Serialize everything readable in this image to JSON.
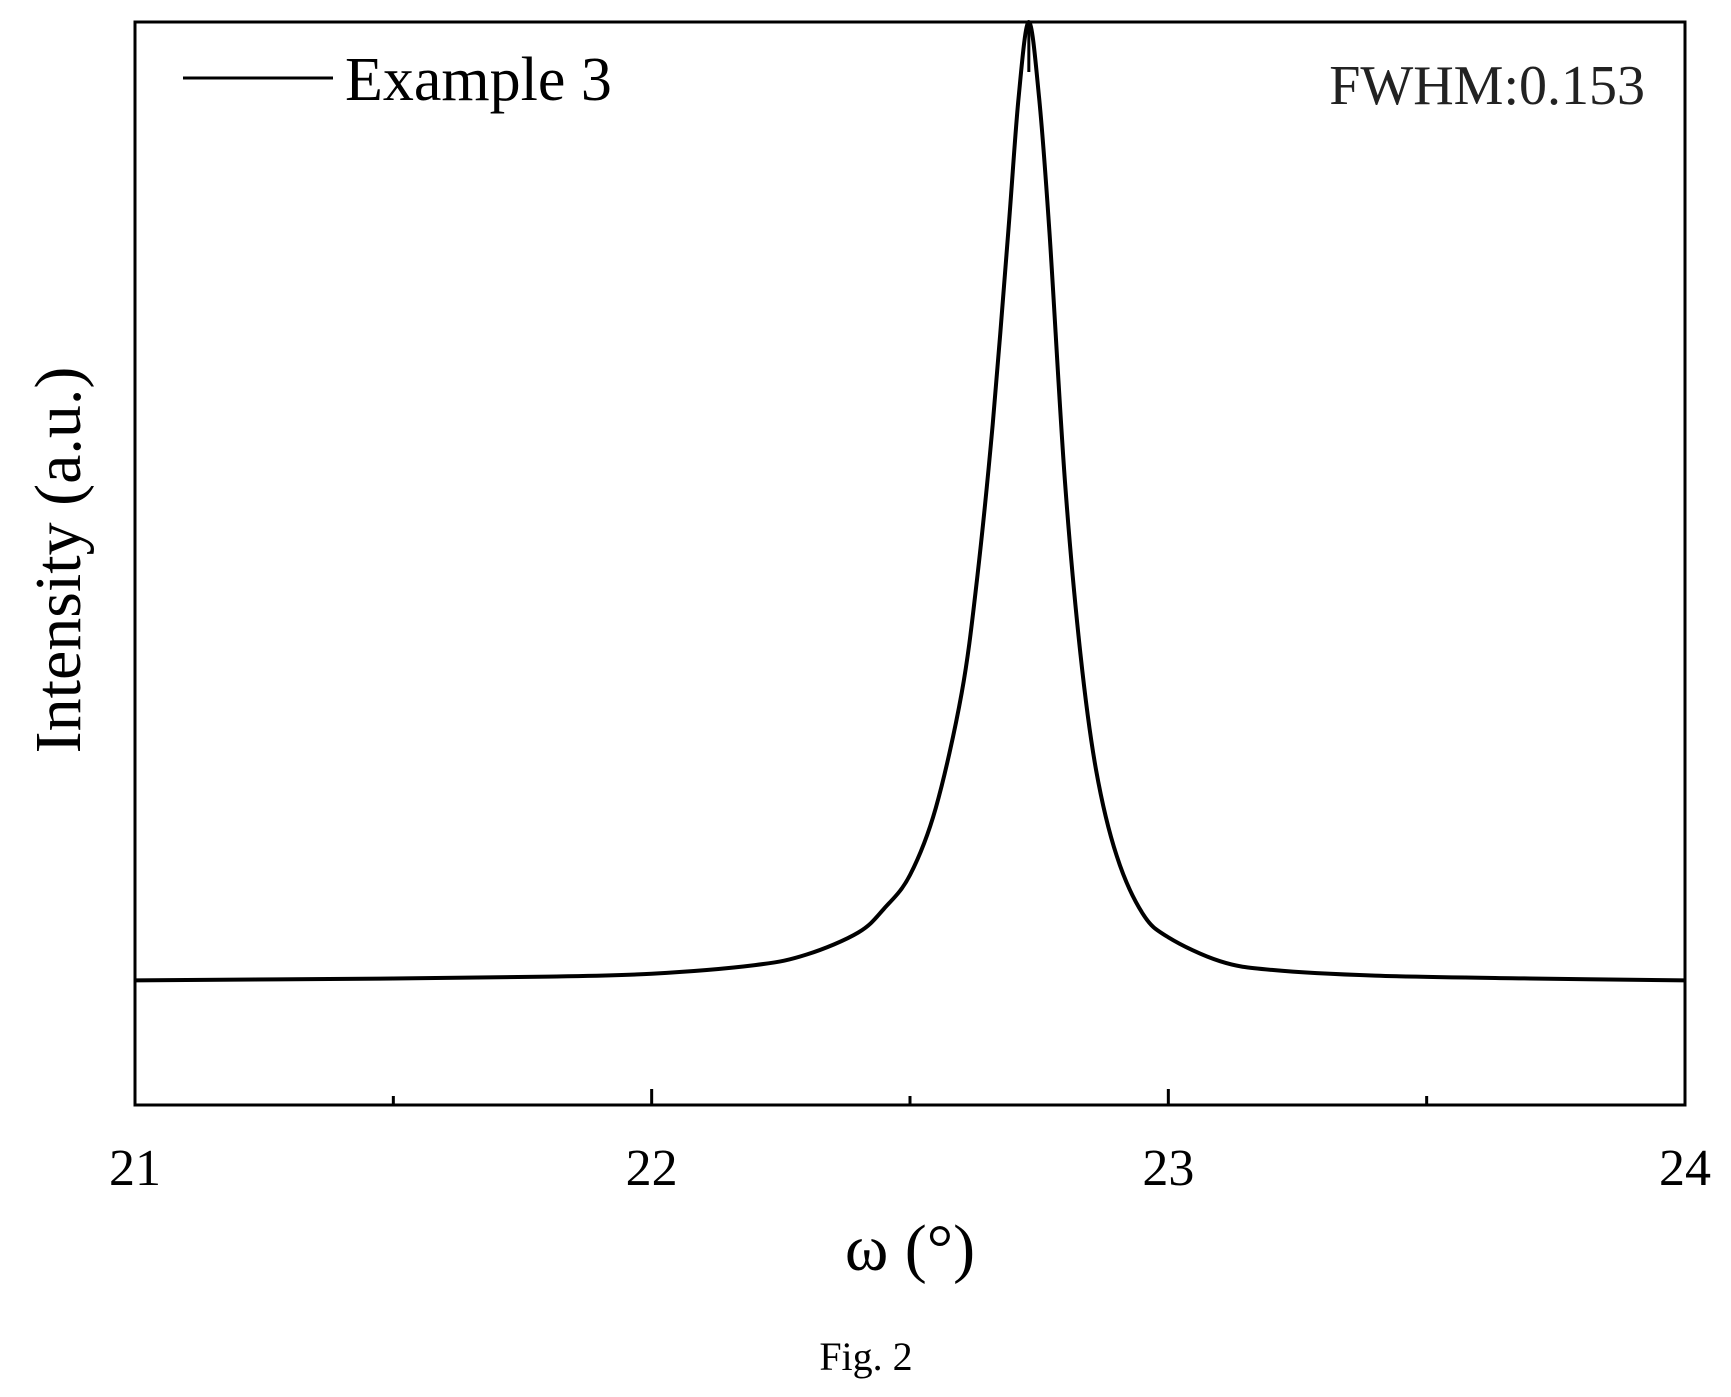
{
  "chart_data": {
    "type": "line",
    "xlabel": "ω (°)",
    "ylabel": "Intensity (a.u.)",
    "xlim": [
      21,
      24
    ],
    "ylim": [
      -0.13,
      1.0
    ],
    "x_ticks": [
      "21",
      "22",
      "23",
      "24"
    ],
    "x_minor_ticks": [
      21.5,
      22.5,
      23.5
    ],
    "y_tick_labels_shown": false,
    "grid": false,
    "legend": {
      "position": "top-left",
      "entries": [
        "Example 3"
      ]
    },
    "annotation": "FWHM:0.153",
    "series": [
      {
        "name": "Example 3",
        "color": "#000000",
        "peak_center": 22.73,
        "peak_height": 1.0,
        "fwhm": 0.153,
        "baseline": 0.0,
        "x": [
          21.0,
          21.5,
          21.8,
          22.0,
          22.2,
          22.3,
          22.4,
          22.45,
          22.5,
          22.55,
          22.6,
          22.63,
          22.66,
          22.69,
          22.71,
          22.73,
          22.75,
          22.77,
          22.8,
          22.83,
          22.86,
          22.9,
          22.95,
          23.0,
          23.1,
          23.2,
          23.4,
          23.7,
          24.0
        ],
        "y": [
          0.0,
          0.002,
          0.004,
          0.007,
          0.016,
          0.027,
          0.05,
          0.075,
          0.11,
          0.18,
          0.3,
          0.42,
          0.58,
          0.78,
          0.92,
          1.0,
          0.92,
          0.78,
          0.52,
          0.34,
          0.22,
          0.13,
          0.07,
          0.045,
          0.02,
          0.011,
          0.005,
          0.002,
          0.0
        ]
      }
    ]
  },
  "caption": "Fig. 2"
}
